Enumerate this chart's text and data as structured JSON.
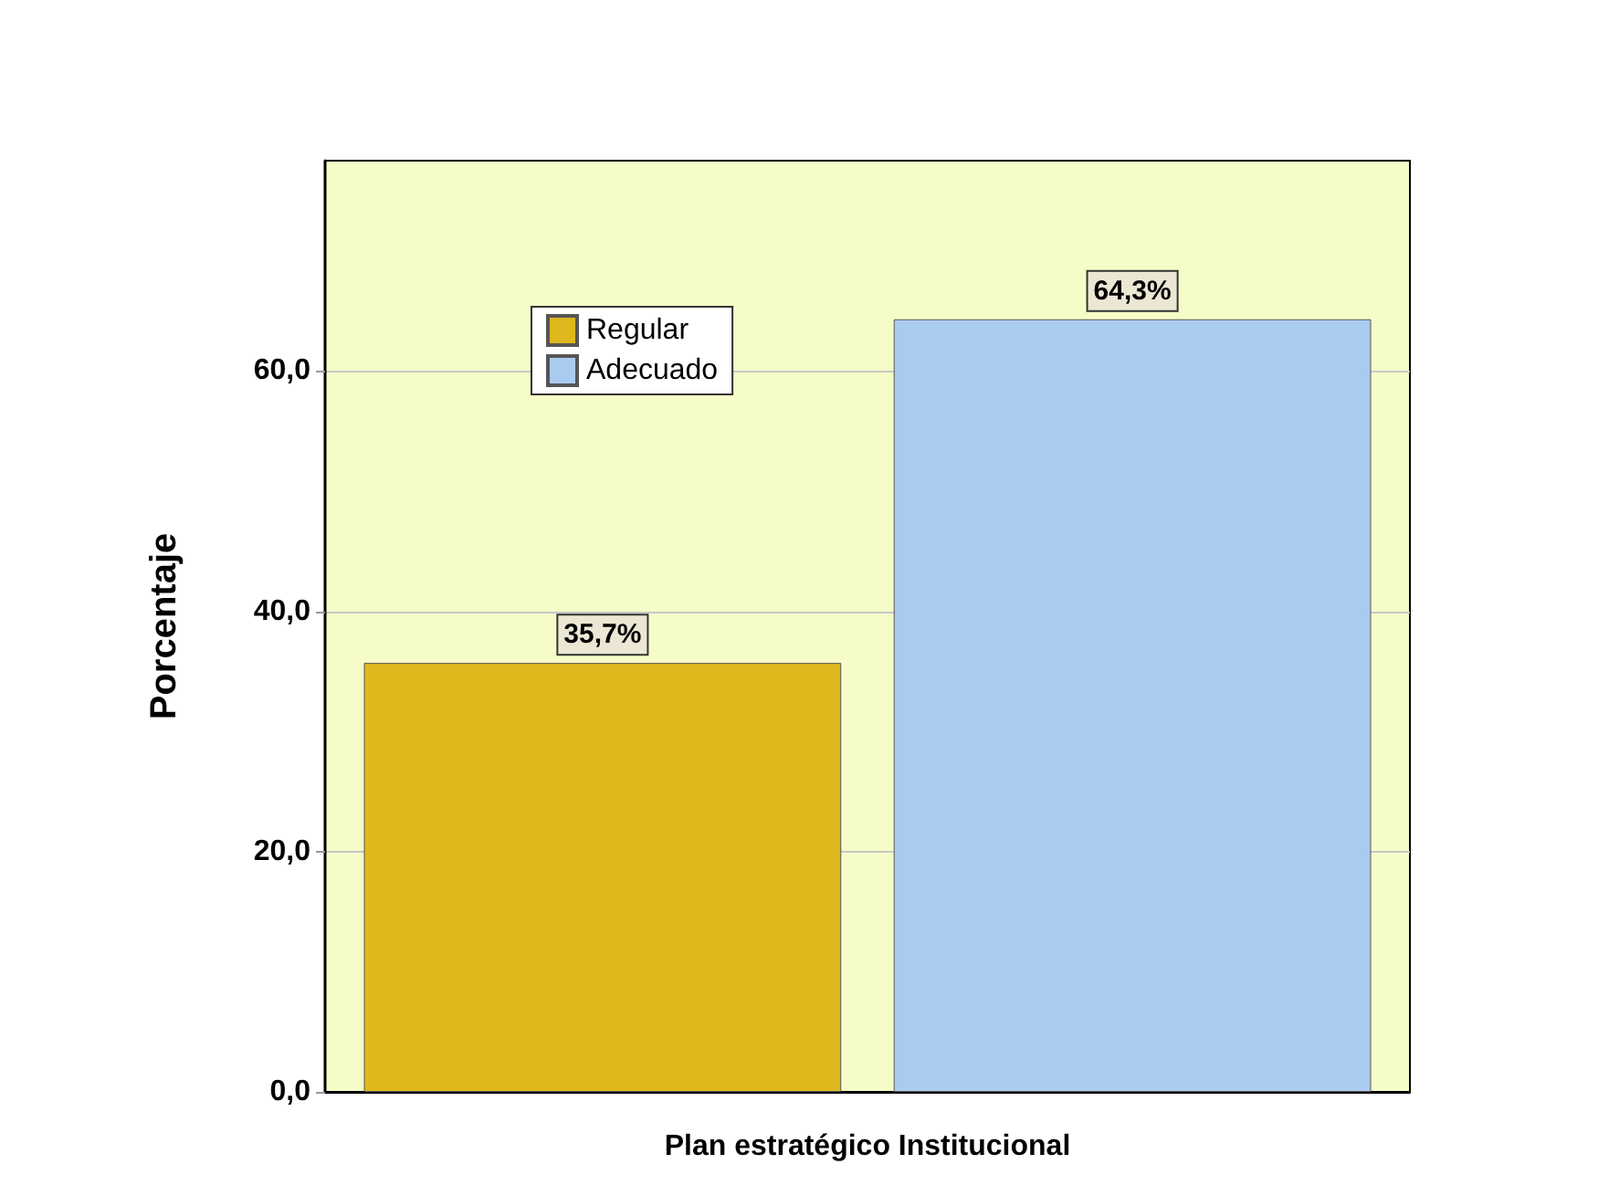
{
  "chart_data": {
    "type": "bar",
    "ylabel": "Porcentaje",
    "xlabel": "Plan estratégico Institucional",
    "categories": [
      null
    ],
    "series": [
      {
        "name": "Regular",
        "color": "#dfb81e",
        "values": [
          35.7
        ],
        "value_labels": [
          "35,7%"
        ]
      },
      {
        "name": "Adecuado",
        "color": "#aacbf0",
        "values": [
          64.3
        ],
        "value_labels": [
          "64,3%"
        ]
      }
    ],
    "ylim": [
      0,
      77.5
    ],
    "yticks": [
      {
        "value": 0,
        "label": "0,0"
      },
      {
        "value": 20,
        "label": "20,0"
      },
      {
        "value": 40,
        "label": "40,0"
      },
      {
        "value": 60,
        "label": "60,0"
      }
    ],
    "grid": "y",
    "legend": "top left"
  }
}
